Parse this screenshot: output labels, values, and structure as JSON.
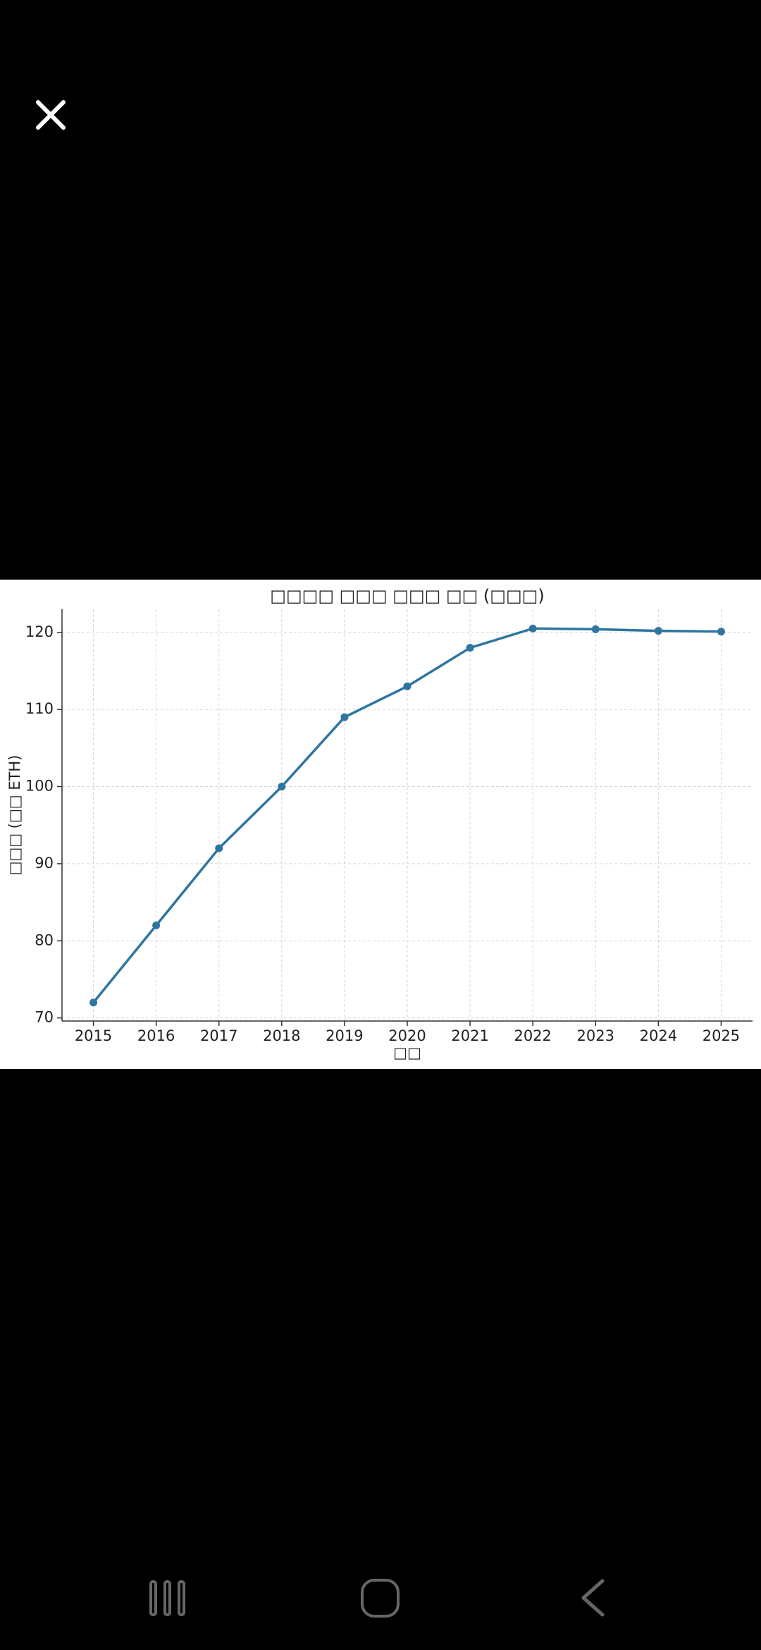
{
  "chart_data": {
    "type": "line",
    "title": "□□□□ □□□ □□□ □□ (□□□)",
    "x_label": "□□",
    "y_label": "□□□ (□□ ETH)",
    "x": [
      2015,
      2016,
      2017,
      2018,
      2019,
      2020,
      2021,
      2022,
      2023,
      2024,
      2025
    ],
    "values": [
      72,
      82,
      92,
      100,
      109,
      113,
      118,
      120.5,
      120.4,
      120.2,
      120.1
    ],
    "color": "#2e75a0",
    "xlim": [
      2014.5,
      2025.5
    ],
    "xticks": [
      2015,
      2016,
      2017,
      2018,
      2019,
      2020,
      2021,
      2022,
      2023,
      2024,
      2025
    ],
    "ylim": [
      69.6,
      123
    ],
    "yticks": [
      70,
      80,
      90,
      100,
      110,
      120
    ],
    "grid": true
  }
}
